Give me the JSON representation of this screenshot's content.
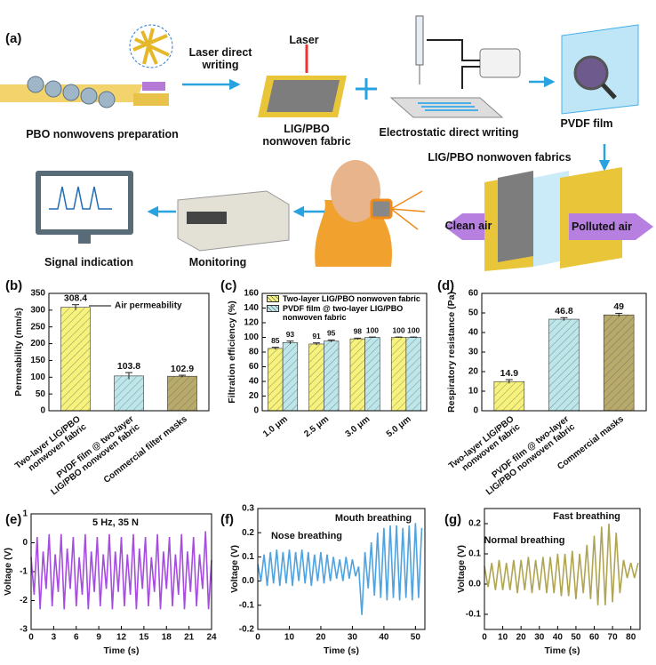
{
  "panel_a": {
    "label": "(a)",
    "labels": [
      [
        "Laser direct",
        "writing"
      ],
      [
        "Laser"
      ],
      [
        "PBO nonwovens preparation"
      ],
      [
        "LIG/PBO",
        "nonwoven fabric"
      ],
      [
        "Electrostatic direct writing"
      ],
      [
        "PVDF film"
      ],
      [
        "LIG/PBO nonwoven fabrics"
      ],
      [
        "Clean air"
      ],
      [
        "Polluted air"
      ],
      [
        "Signal indication"
      ],
      [
        "Monitoring"
      ]
    ]
  },
  "chart_data": [
    {
      "panel": "(b)",
      "type": "bar",
      "ylabel": "Permeability (mm/s)",
      "series_name": "Air permeability",
      "categories": [
        [
          "Two-layer LIG/PBO",
          "nonwoven fabric"
        ],
        [
          "PVDF film @ two-layer",
          "LIG/PBO nonwoven fabric"
        ],
        [
          "Commercial filter masks"
        ]
      ],
      "values": [
        308.4,
        103.8,
        102.9
      ],
      "errors": [
        8,
        10,
        3
      ],
      "colors": [
        "#f7f27c",
        "#bde6ea",
        "#b8aa6a"
      ],
      "ylim": [
        0,
        350
      ],
      "yticks": [
        0,
        50,
        100,
        150,
        200,
        250,
        300,
        350
      ]
    },
    {
      "panel": "(c)",
      "type": "bar",
      "ylabel": "Filtration efficiency (%)",
      "categories": [
        "1.0 μm",
        "2.5 μm",
        "3.0 μm",
        "5.0 μm"
      ],
      "series": [
        {
          "name": "Two-layer LIG/PBO nonwoven fabric",
          "color": "#f7f27c",
          "values": [
            85,
            91,
            98,
            100
          ],
          "errors": [
            1.5,
            1.5,
            1,
            0.5
          ]
        },
        {
          "name": "PVDF film @ two-layer LIG/PBO nonwoven fabric",
          "color": "#bde6ea",
          "values": [
            93,
            95,
            100,
            100
          ],
          "errors": [
            2,
            1.5,
            0.5,
            0.5
          ]
        }
      ],
      "ylim": [
        0,
        160
      ],
      "yticks": [
        0,
        20,
        40,
        60,
        80,
        100,
        120,
        140,
        160
      ]
    },
    {
      "panel": "(d)",
      "type": "bar",
      "ylabel": "Respiratory resistance (Pa)",
      "categories": [
        [
          "Two-layer LIG/PBO",
          "nonwoven fabric"
        ],
        [
          "PVDF film @ two-layer",
          "LIG/PBO nonwoven fabric"
        ],
        [
          "Commercial masks"
        ]
      ],
      "values": [
        14.9,
        46.8,
        49
      ],
      "errors": [
        1,
        0.8,
        0.8
      ],
      "colors": [
        "#f7f27c",
        "#bde6ea",
        "#b8aa6a"
      ],
      "ylim": [
        0,
        60
      ],
      "yticks": [
        0,
        10,
        20,
        30,
        40,
        50,
        60
      ]
    },
    {
      "panel": "(e)",
      "type": "line",
      "xlabel": "Time (s)",
      "ylabel": "Voltage (V)",
      "color": "#a64de0",
      "annotations": [
        "5 Hz, 35 N"
      ],
      "x": [
        0,
        0.4,
        0.8,
        1.2,
        1.6,
        2.0,
        2.4,
        2.8,
        3.2,
        3.6,
        4.0,
        4.4,
        4.8,
        5.2,
        5.6,
        6.0,
        6.4,
        6.8,
        7.2,
        7.6,
        8.0,
        8.4,
        8.8,
        9.2,
        9.6,
        10.0,
        10.4,
        10.8,
        11.2,
        11.6,
        12.0,
        12.4,
        12.8,
        13.2,
        13.6,
        14.0,
        14.4,
        14.8,
        15.2,
        15.6,
        16.0,
        16.4,
        16.8,
        17.2,
        17.6,
        18.0,
        18.4,
        18.8,
        19.2,
        19.6,
        20.0,
        20.4,
        20.8,
        21.2,
        21.6,
        22.0,
        22.4,
        22.8,
        23.2,
        23.6,
        24.0
      ],
      "values": [
        -0.5,
        -1.8,
        0.2,
        -2.3,
        -0.3,
        -1.6,
        0.3,
        -2.2,
        -0.4,
        -1.7,
        0.3,
        -2.3,
        -0.2,
        -1.6,
        0.2,
        -2.2,
        -0.5,
        -1.8,
        0.3,
        -2.3,
        -0.3,
        -1.7,
        0.2,
        -2.2,
        -0.4,
        -1.6,
        0.3,
        -2.3,
        -0.3,
        -1.7,
        0.2,
        -2.2,
        -0.4,
        -1.8,
        0.3,
        -2.3,
        -0.2,
        -1.6,
        0.2,
        -2.2,
        -0.5,
        -1.7,
        0.3,
        -2.3,
        -0.3,
        -1.6,
        0.2,
        -2.2,
        -0.4,
        -1.8,
        0.3,
        -2.3,
        -0.3,
        -1.7,
        0.2,
        -2.2,
        -0.4,
        -1.6,
        0.4,
        -2.3,
        -0.6
      ],
      "xlim": [
        0,
        24
      ],
      "xticks": [
        0,
        3,
        6,
        9,
        12,
        15,
        18,
        21,
        24
      ],
      "ylim": [
        -3,
        1
      ],
      "yticks": [
        -3,
        -2,
        -1,
        0,
        1
      ]
    },
    {
      "panel": "(f)",
      "type": "line",
      "xlabel": "Time (s)",
      "ylabel": "Voltage (V)",
      "color": "#4ea3e0",
      "annotations": [
        "Mouth breathing",
        "Nose breathing"
      ],
      "x": [
        0,
        1,
        2,
        3,
        4,
        5,
        6,
        7,
        8,
        9,
        10,
        11,
        12,
        13,
        14,
        15,
        16,
        17,
        18,
        19,
        20,
        21,
        22,
        23,
        24,
        25,
        26,
        27,
        28,
        29,
        30,
        31,
        32,
        33,
        34,
        35,
        36,
        37,
        38,
        39,
        40,
        41,
        42,
        43,
        44,
        45,
        46,
        47,
        48,
        49,
        50,
        51,
        52
      ],
      "values": [
        0.07,
        0.0,
        0.11,
        -0.02,
        0.12,
        -0.01,
        0.13,
        -0.02,
        0.12,
        -0.01,
        0.13,
        -0.02,
        0.12,
        0.0,
        0.13,
        -0.01,
        0.12,
        -0.02,
        0.11,
        0.0,
        0.12,
        -0.01,
        0.11,
        0.0,
        0.1,
        0.01,
        0.09,
        0.0,
        0.1,
        0.01,
        0.09,
        0.02,
        0.06,
        -0.14,
        0.12,
        -0.03,
        0.16,
        -0.06,
        0.2,
        -0.07,
        0.22,
        -0.08,
        0.23,
        -0.07,
        0.23,
        -0.08,
        0.22,
        -0.07,
        0.23,
        -0.08,
        0.24,
        -0.07,
        0.22
      ],
      "xlim": [
        0,
        53
      ],
      "xticks": [
        0,
        10,
        20,
        30,
        40,
        50
      ],
      "ylim": [
        -0.2,
        0.3
      ],
      "yticks": [
        -0.2,
        -0.1,
        {
          "value": 0,
          "label": "0.0"
        },
        0.1,
        0.2,
        0.3
      ]
    },
    {
      "panel": "(g)",
      "type": "line",
      "xlabel": "Time (s)",
      "ylabel": "Voltage (V)",
      "color": "#b0a552",
      "annotations": [
        "Fast breathing",
        "Normal breathing"
      ],
      "x": [
        0,
        2,
        4,
        6,
        8,
        10,
        12,
        14,
        16,
        18,
        20,
        22,
        24,
        26,
        28,
        30,
        32,
        34,
        36,
        38,
        40,
        42,
        44,
        46,
        48,
        50,
        52,
        54,
        56,
        58,
        60,
        62,
        64,
        66,
        68,
        70,
        72,
        74,
        76,
        78,
        80,
        82,
        84
      ],
      "values": [
        0.06,
        -0.01,
        0.07,
        -0.02,
        0.08,
        -0.02,
        0.07,
        -0.02,
        0.08,
        -0.03,
        0.08,
        -0.02,
        0.09,
        -0.03,
        0.08,
        -0.02,
        0.09,
        -0.03,
        0.09,
        -0.03,
        0.1,
        -0.04,
        0.1,
        -0.04,
        0.11,
        -0.05,
        0.1,
        -0.03,
        0.13,
        -0.05,
        0.16,
        -0.07,
        0.19,
        -0.07,
        0.2,
        -0.06,
        0.17,
        -0.03,
        0.08,
        0.02,
        0.07,
        0.02,
        0.07
      ],
      "xlim": [
        0,
        85
      ],
      "xticks": [
        0,
        10,
        20,
        30,
        40,
        50,
        60,
        70,
        80
      ],
      "ylim": [
        -0.15,
        0.25
      ],
      "yticks": [
        -0.1,
        {
          "value": 0,
          "label": "0.0"
        },
        0.1,
        0.2
      ]
    }
  ]
}
